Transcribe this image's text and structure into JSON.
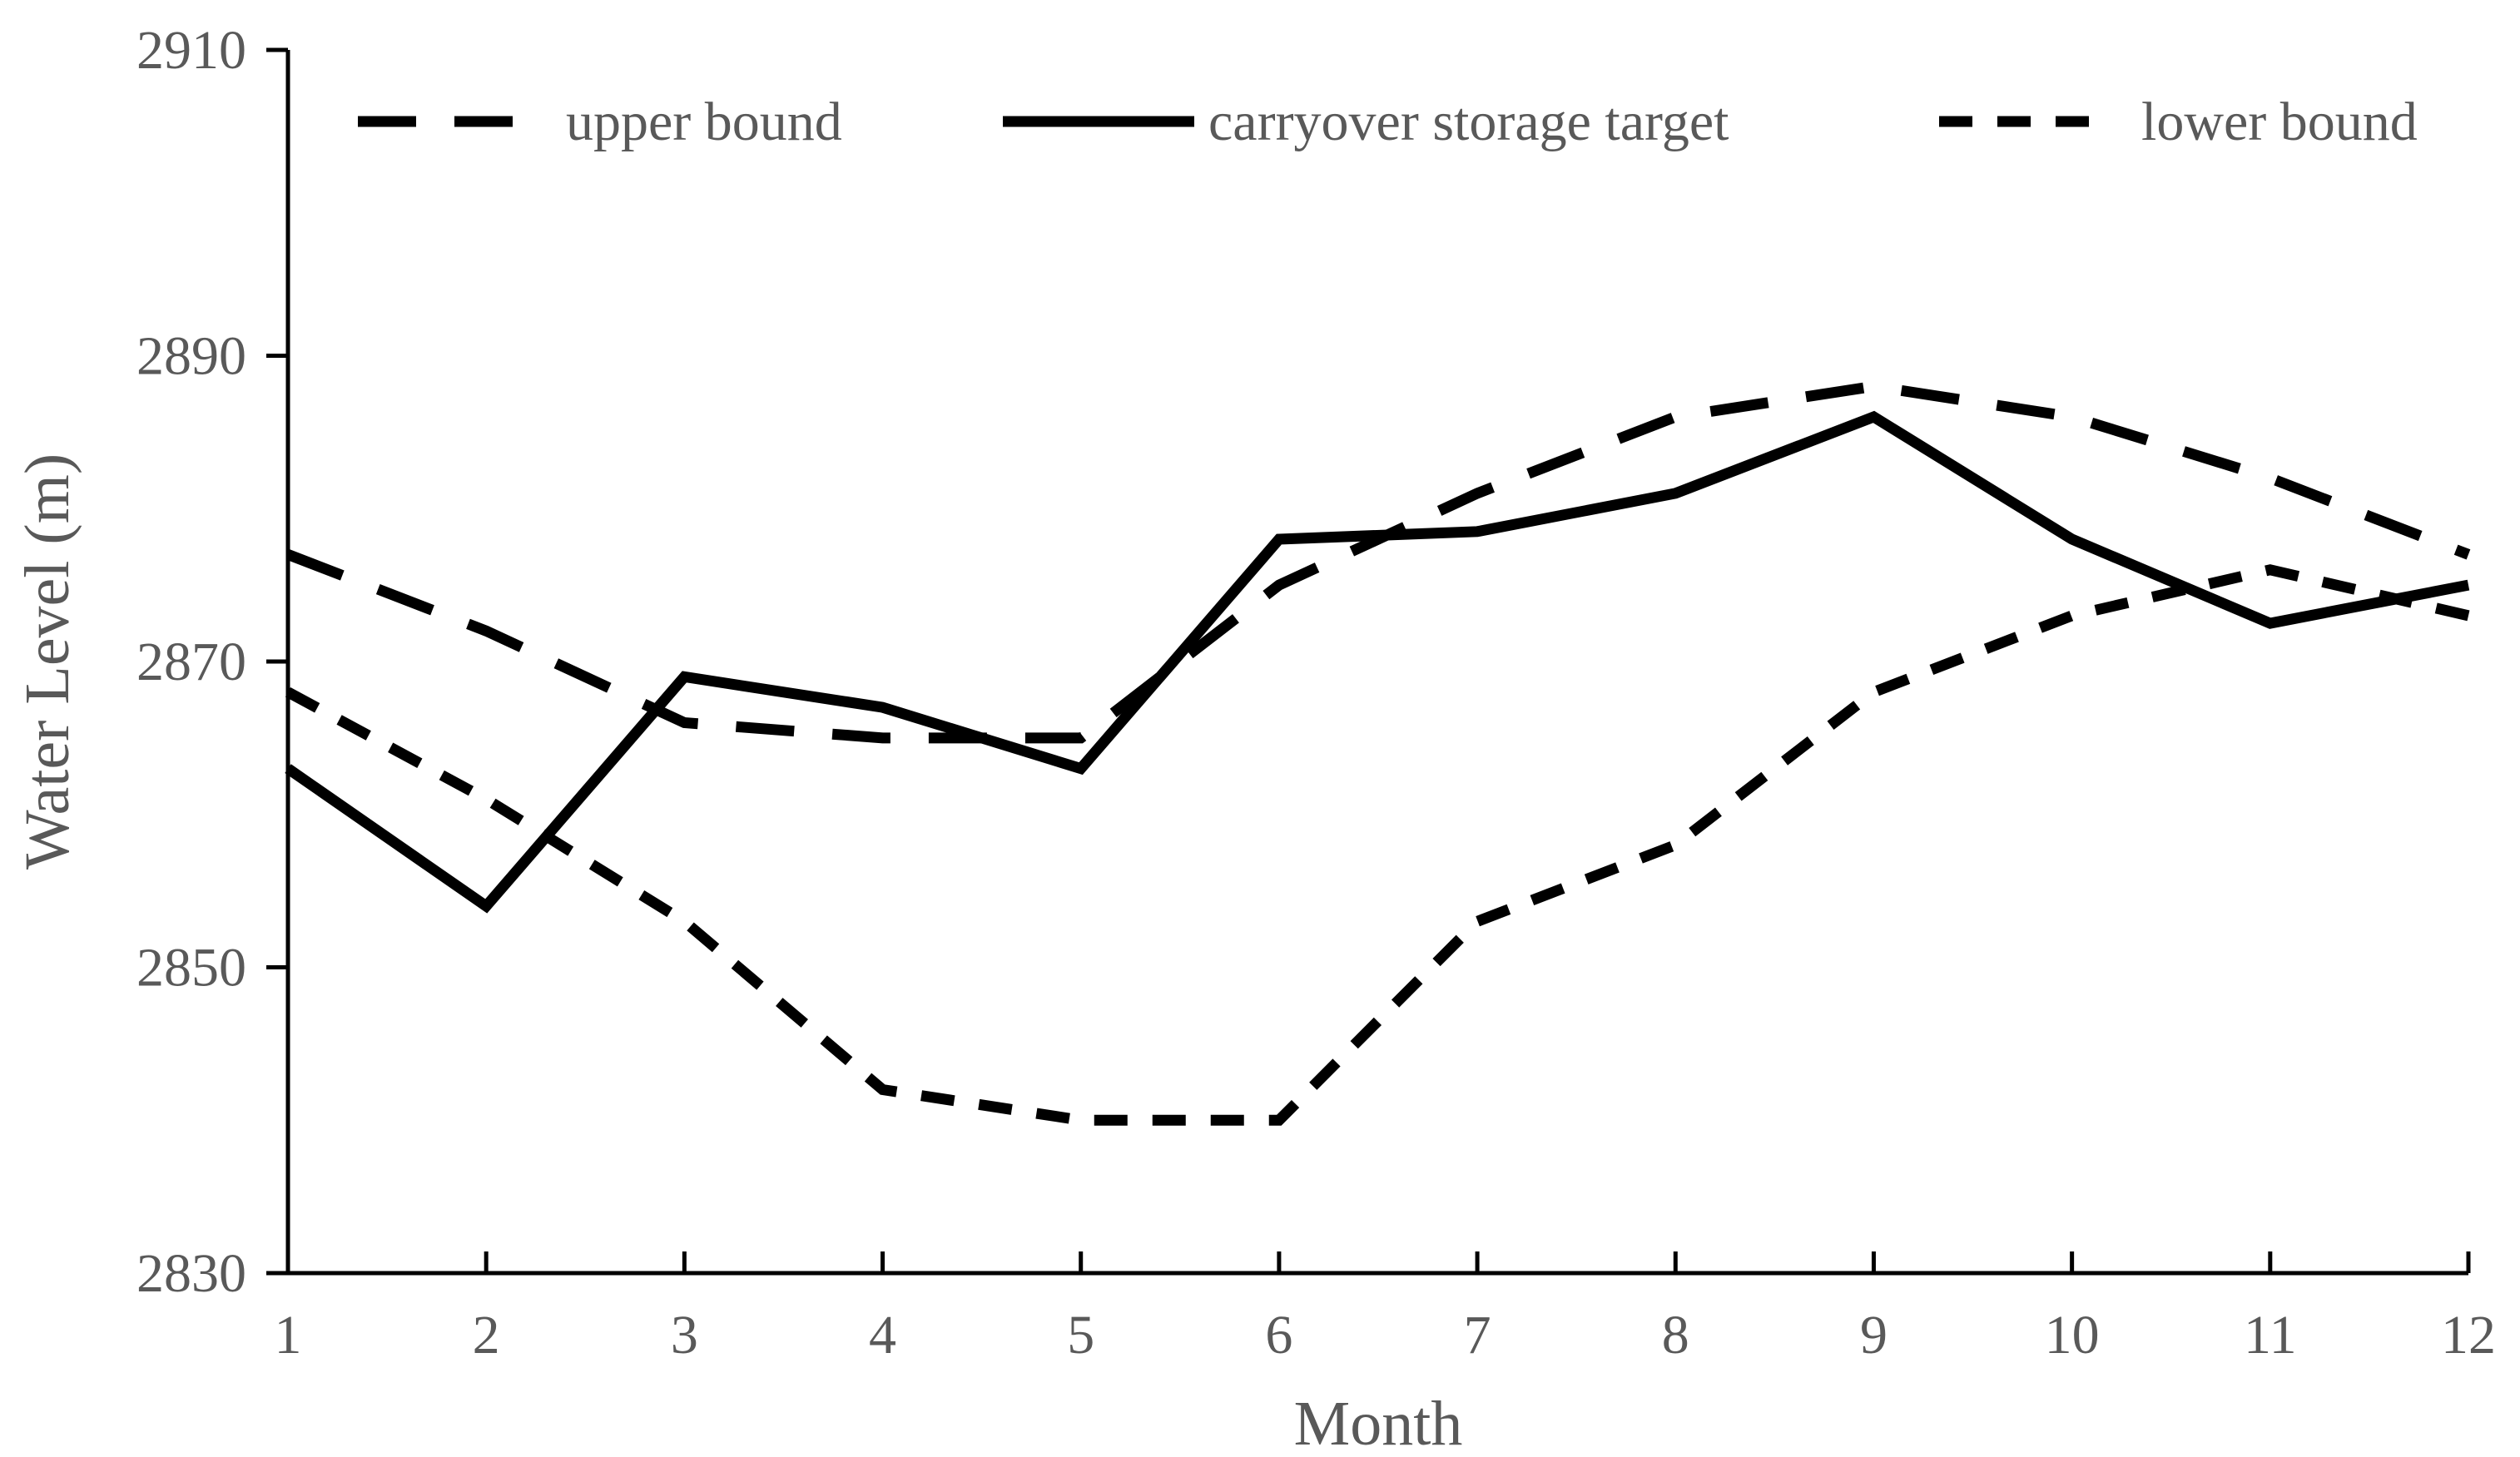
{
  "chart_data": {
    "type": "line",
    "title": "",
    "xlabel": "Month",
    "ylabel": "Water Level (m)",
    "x": [
      1,
      2,
      3,
      4,
      5,
      6,
      7,
      8,
      9,
      10,
      11,
      12
    ],
    "xlim": [
      1,
      12
    ],
    "ylim": [
      2830,
      2910
    ],
    "yticks": [
      2830,
      2850,
      2870,
      2890,
      2910
    ],
    "grid": false,
    "legend_position": "top",
    "series": [
      {
        "name": "upper bound",
        "style": "long-dash",
        "color": "#000000",
        "values": [
          2877,
          2872,
          2866,
          2865,
          2865,
          2875,
          2881,
          2886,
          2888,
          2886,
          2882,
          2877
        ]
      },
      {
        "name": "carryover storage target",
        "style": "solid",
        "color": "#000000",
        "values": [
          2863,
          2854,
          2869,
          2867,
          2863,
          2878,
          2878.5,
          2881,
          2886,
          2878,
          2872.5,
          2875
        ]
      },
      {
        "name": "lower bound",
        "style": "short-dash",
        "color": "#000000",
        "values": [
          2868,
          2861,
          2853,
          2842,
          2840,
          2840,
          2853,
          2858,
          2868,
          2873,
          2876,
          2873
        ]
      }
    ]
  }
}
